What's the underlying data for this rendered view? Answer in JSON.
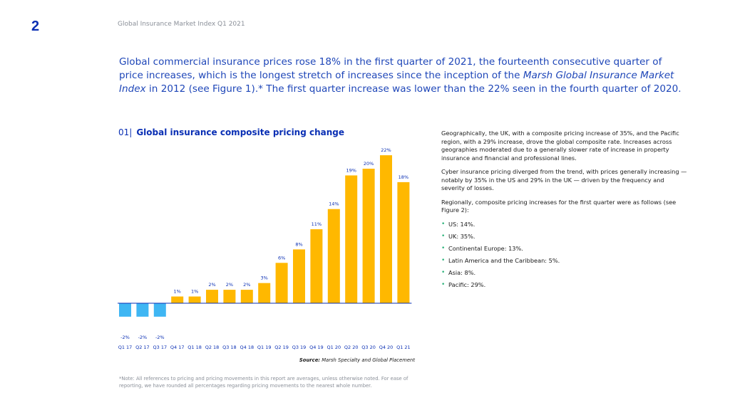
{
  "header": {
    "page_number": "2",
    "title": "Global Insurance Market Index Q1 2021"
  },
  "intro": {
    "part1": "Global commercial insurance prices rose 18% in the first quarter of 2021, the fourteenth consecutive quarter of price increases, which is the longest stretch of increases since the inception of the ",
    "italic": "Marsh Global Insurance Market Index",
    "part2": " in 2012 (see Figure 1).* The first quarter increase was lower than the 22% seen in the fourth quarter of 2020."
  },
  "figure": {
    "number": "01|",
    "title": "Global insurance composite pricing change",
    "source_label": "Source:",
    "source_text": " Marsh Specialty and Global Placement"
  },
  "colors": {
    "positive_bar": "#ffb800",
    "negative_bar": "#3fb6f3",
    "label": "#0a2fb4",
    "axis": "#0a2fb4"
  },
  "chart_data": {
    "type": "bar",
    "title": "Global insurance composite pricing change",
    "xlabel": "",
    "ylabel": "",
    "categories": [
      "Q1 17",
      "Q2 17",
      "Q3 17",
      "Q4 17",
      "Q1 18",
      "Q2 18",
      "Q3 18",
      "Q4 18",
      "Q1 19",
      "Q2 19",
      "Q3 19",
      "Q4 19",
      "Q1 20",
      "Q2 20",
      "Q3 20",
      "Q4 20",
      "Q1 21"
    ],
    "values": [
      -2,
      -2,
      -2,
      1,
      1,
      2,
      2,
      2,
      3,
      6,
      8,
      11,
      14,
      19,
      20,
      22,
      18
    ],
    "value_labels": [
      "-2%",
      "-2%",
      "-2%",
      "1%",
      "1%",
      "2%",
      "2%",
      "2%",
      "3%",
      "6%",
      "8%",
      "11%",
      "14%",
      "19%",
      "20%",
      "22%",
      "18%"
    ],
    "ylim": [
      -2,
      22
    ],
    "grid": false,
    "legend": "none"
  },
  "footnote": "*Note: All references to pricing and pricing movements in this report are averages, unless otherwise noted. For ease of reporting, we have rounded all percentages regarding pricing movements to the nearest whole number.",
  "sidebar": {
    "paragraphs": [
      "Geographically, the UK, with a composite pricing increase of 35%, and the Pacific region, with a 29% increase, drove the global composite rate. Increases across geographies moderated due to a generally slower rate of increase in property insurance and financial and professional lines.",
      "Cyber insurance pricing diverged from the trend, with prices generally increasing — notably by 35% in the US and 29% in the UK — driven by the frequency and severity of losses.",
      "Regionally, composite pricing increases for the first quarter were as follows (see Figure 2):"
    ],
    "bullet_symbol": "•",
    "regions": [
      "US: 14%.",
      "UK: 35%.",
      "Continental Europe: 13%.",
      "Latin America and the Caribbean: 5%.",
      "Asia: 8%.",
      "Pacific: 29%."
    ]
  }
}
